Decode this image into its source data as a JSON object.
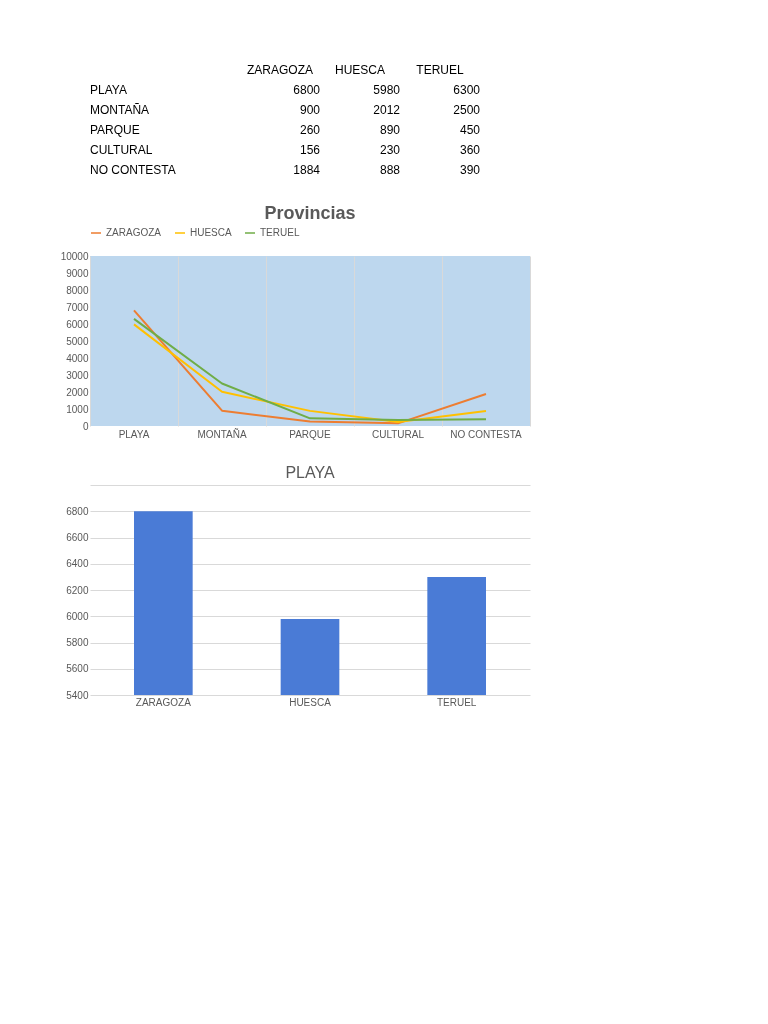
{
  "chart_data": [
    {
      "type": "other",
      "categories": [
        "PLAYA",
        "MONTAÑA",
        "PARQUE",
        "CULTURAL",
        "NO CONTESTA"
      ],
      "series": [
        {
          "name": "ZARAGOZA",
          "values": [
            6800,
            900,
            260,
            156,
            1884
          ]
        },
        {
          "name": "HUESCA",
          "values": [
            5980,
            2012,
            890,
            230,
            888
          ]
        },
        {
          "name": "TERUEL",
          "values": [
            6300,
            2500,
            450,
            360,
            390
          ]
        }
      ],
      "data_labels": true
    },
    {
      "type": "line",
      "title": "Provincias",
      "categories": [
        "PLAYA",
        "MONTAÑA",
        "PARQUE",
        "CULTURAL",
        "NO CONTESTA"
      ],
      "series": [
        {
          "name": "ZARAGOZA",
          "color": "#ed7d31",
          "values": [
            6800,
            900,
            260,
            156,
            1884
          ]
        },
        {
          "name": "HUESCA",
          "color": "#ffc000",
          "values": [
            5980,
            2012,
            890,
            230,
            888
          ]
        },
        {
          "name": "TERUEL",
          "color": "#70ad47",
          "values": [
            6300,
            2500,
            450,
            360,
            390
          ]
        }
      ],
      "ylim": [
        0,
        10000
      ],
      "yticks": [
        0,
        1000,
        2000,
        3000,
        4000,
        5000,
        6000,
        7000,
        8000,
        9000,
        10000
      ],
      "grid": "x",
      "legend": "top"
    },
    {
      "type": "bar",
      "title": "PLAYA",
      "categories": [
        "ZARAGOZA",
        "HUESCA",
        "TERUEL"
      ],
      "values": [
        6800,
        5980,
        6300
      ],
      "color": "#4a7bd6",
      "ylim": [
        5400,
        7000
      ],
      "yticks": [
        5400,
        5600,
        5800,
        6000,
        6200,
        6400,
        6600,
        6800,
        {
          "value": 7000,
          "label": null
        }
      ],
      "grid": "y"
    }
  ]
}
